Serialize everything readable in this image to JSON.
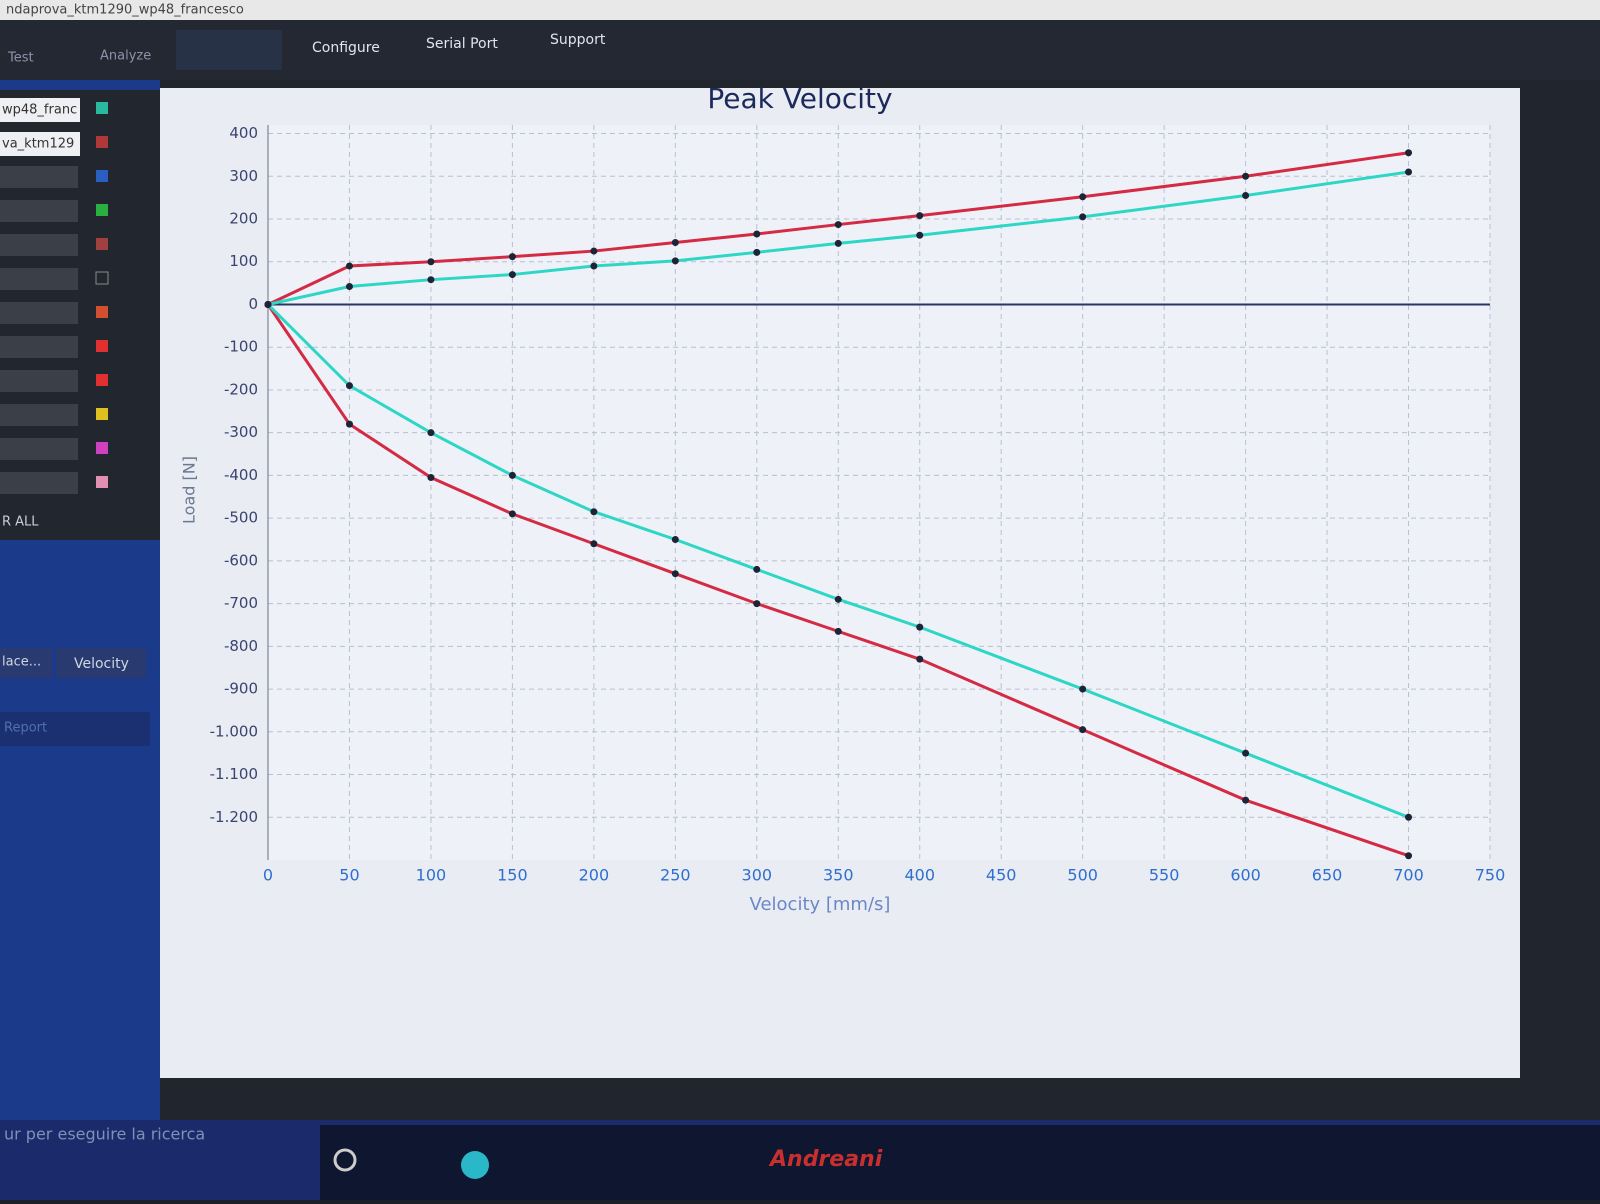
{
  "app": {
    "window_title": "ndaprova_ktm1290_wp48_francesco",
    "menu": [
      "Test",
      "Analyze",
      "Configure",
      "Serial Port",
      "Support"
    ],
    "sidebar": {
      "files": [
        "wp48_franc",
        "va_ktm129"
      ],
      "clear": "R ALL",
      "buttons": [
        "lace...",
        "Velocity"
      ],
      "report": "Report"
    },
    "taskbar": {
      "search": "ur per eseguire la ricerca",
      "brand": "Andreani"
    }
  },
  "chart_data": {
    "type": "line",
    "title": "Peak Velocity",
    "x_label": "Velocity [mm/s]",
    "y_label": "Load [N]",
    "x": [
      0,
      50,
      100,
      150,
      200,
      250,
      300,
      350,
      400,
      500,
      600,
      700
    ],
    "series": [
      {
        "color": "#d42a44",
        "values": [
          0,
          90,
          100,
          112,
          125,
          145,
          165,
          187,
          208,
          252,
          300,
          355
        ]
      },
      {
        "color": "#2ed6c6",
        "values": [
          0,
          42,
          58,
          70,
          90,
          102,
          122,
          143,
          162,
          205,
          255,
          310
        ]
      },
      {
        "color": "#d42a44",
        "values": [
          0,
          -280,
          -405,
          -490,
          -560,
          -630,
          -700,
          -765,
          -830,
          -995,
          -1160,
          -1290
        ]
      },
      {
        "color": "#2ed6c6",
        "values": [
          0,
          -190,
          -300,
          -400,
          -485,
          -550,
          -620,
          -690,
          -755,
          -900,
          -1050,
          -1200
        ]
      }
    ],
    "xlim": [
      0,
      750
    ],
    "xticks": [
      0,
      50,
      100,
      150,
      200,
      250,
      300,
      350,
      400,
      450,
      500,
      550,
      600,
      650,
      700,
      750
    ],
    "ylim": [
      -1300,
      420
    ],
    "yticks": [
      400,
      300,
      200,
      100,
      0,
      -100,
      -200,
      -300,
      -400,
      -500,
      -600,
      -700,
      -800,
      -900,
      {
        "value": -1000,
        "label": "-1.000"
      },
      {
        "value": -1100,
        "label": "-1.100"
      },
      {
        "value": -1200,
        "label": "-1.200"
      }
    ],
    "grid": true
  }
}
